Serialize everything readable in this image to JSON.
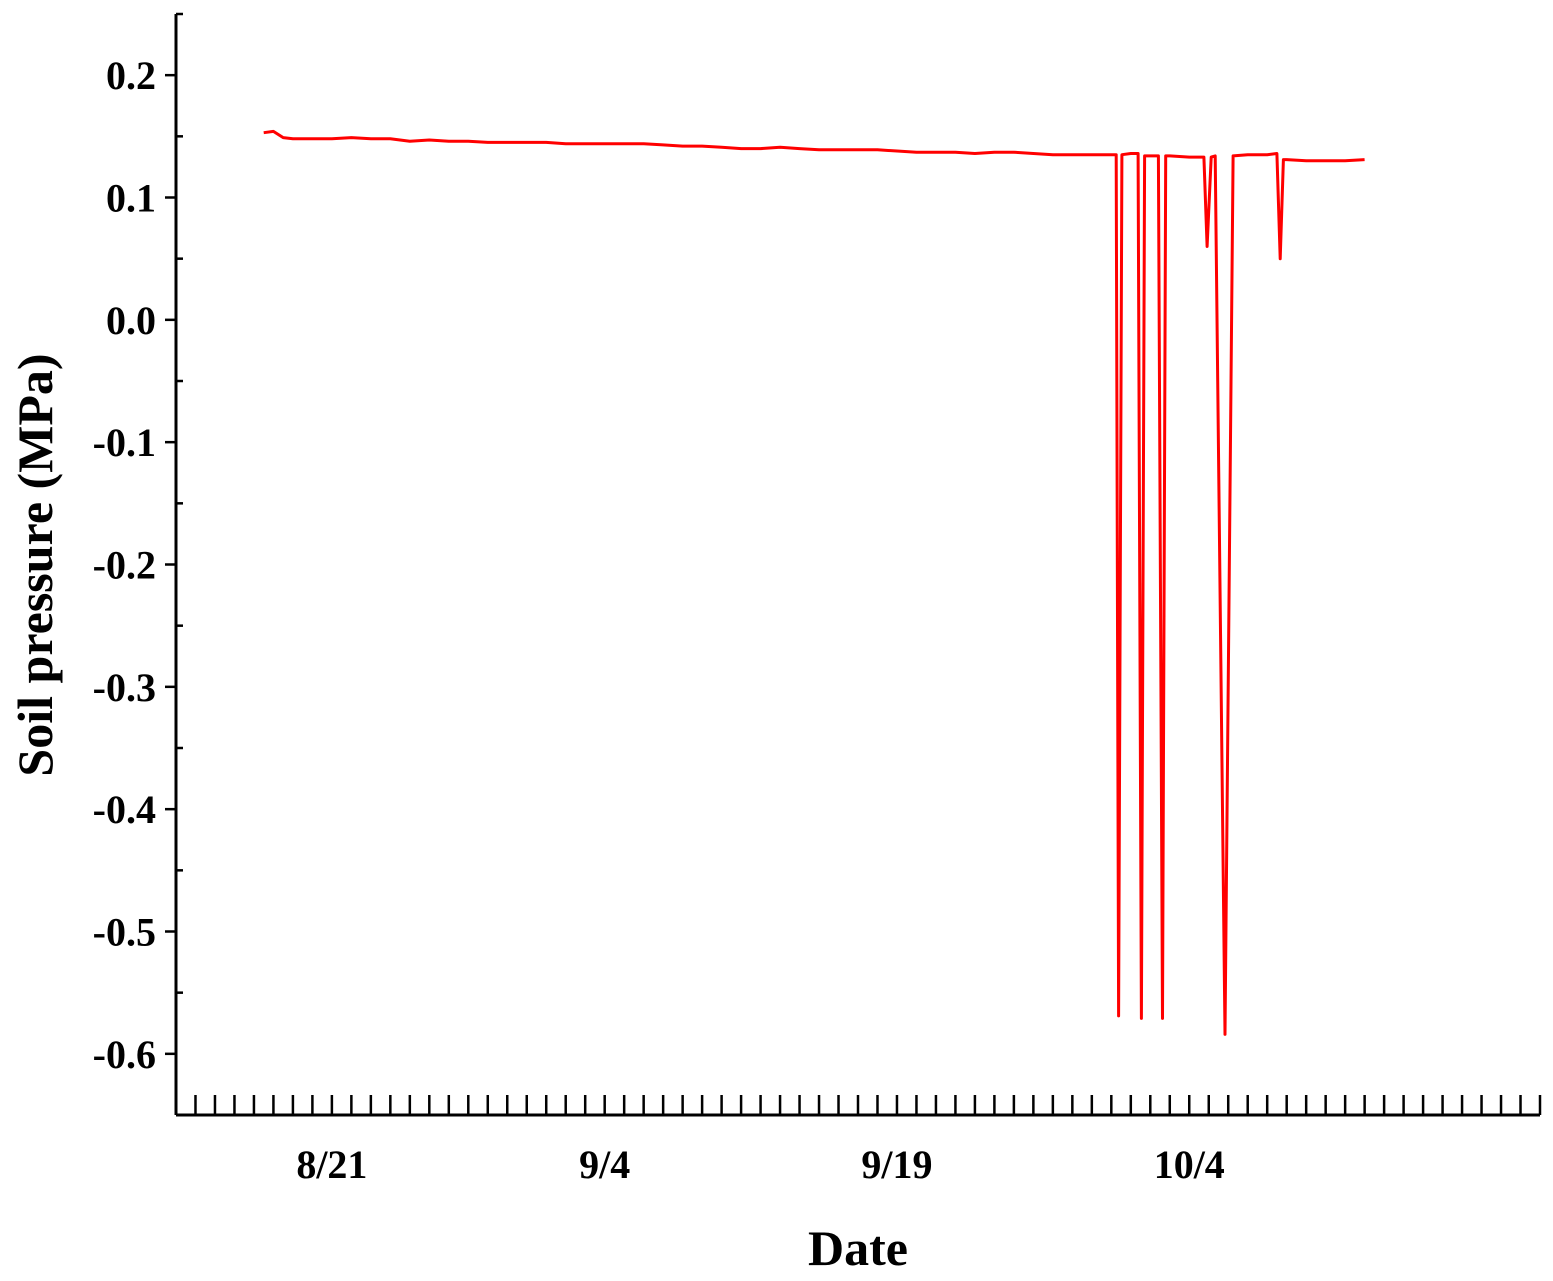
{
  "chart_data": {
    "type": "line",
    "title": "",
    "xlabel": "Date",
    "ylabel": "Soil pressure (MPa)",
    "x_tick_labels": [
      "8/21",
      "9/4",
      "9/19",
      "10/4"
    ],
    "x_tick_dates": [
      "2021-08-21",
      "2021-09-04",
      "2021-09-19",
      "2021-10-04"
    ],
    "y_ticks": [
      "0.2",
      "0.1",
      "0.0",
      "-0.1",
      "-0.2",
      "-0.3",
      "-0.4",
      "-0.5",
      "-0.6"
    ],
    "ylim": [
      -0.65,
      0.25
    ],
    "xlim": [
      "2021-08-13",
      "2021-10-22"
    ],
    "grid": false,
    "legend": "none",
    "series": [
      {
        "color": "#ff0000",
        "points": [
          [
            "2021-08-17T12:00",
            0.153
          ],
          [
            "2021-08-18",
            0.154
          ],
          [
            "2021-08-18T12:00",
            0.149
          ],
          [
            "2021-08-19",
            0.148
          ],
          [
            "2021-08-20",
            0.148
          ],
          [
            "2021-08-21",
            0.148
          ],
          [
            "2021-08-22",
            0.149
          ],
          [
            "2021-08-23",
            0.148
          ],
          [
            "2021-08-24",
            0.148
          ],
          [
            "2021-08-25",
            0.146
          ],
          [
            "2021-08-26",
            0.147
          ],
          [
            "2021-08-27",
            0.146
          ],
          [
            "2021-08-28",
            0.146
          ],
          [
            "2021-08-29",
            0.145
          ],
          [
            "2021-08-30",
            0.145
          ],
          [
            "2021-08-31",
            0.145
          ],
          [
            "2021-09-01",
            0.145
          ],
          [
            "2021-09-02",
            0.144
          ],
          [
            "2021-09-03",
            0.144
          ],
          [
            "2021-09-04",
            0.144
          ],
          [
            "2021-09-05",
            0.144
          ],
          [
            "2021-09-06",
            0.144
          ],
          [
            "2021-09-07",
            0.143
          ],
          [
            "2021-09-08",
            0.142
          ],
          [
            "2021-09-09",
            0.142
          ],
          [
            "2021-09-10",
            0.141
          ],
          [
            "2021-09-11",
            0.14
          ],
          [
            "2021-09-12",
            0.14
          ],
          [
            "2021-09-13",
            0.141
          ],
          [
            "2021-09-14",
            0.14
          ],
          [
            "2021-09-15",
            0.139
          ],
          [
            "2021-09-16",
            0.139
          ],
          [
            "2021-09-17",
            0.139
          ],
          [
            "2021-09-18",
            0.139
          ],
          [
            "2021-09-19",
            0.138
          ],
          [
            "2021-09-20",
            0.137
          ],
          [
            "2021-09-21",
            0.137
          ],
          [
            "2021-09-22",
            0.137
          ],
          [
            "2021-09-23",
            0.136
          ],
          [
            "2021-09-24",
            0.137
          ],
          [
            "2021-09-25",
            0.137
          ],
          [
            "2021-09-26",
            0.136
          ],
          [
            "2021-09-27",
            0.135
          ],
          [
            "2021-09-28",
            0.135
          ],
          [
            "2021-09-29",
            0.135
          ],
          [
            "2021-09-30T06:00",
            0.135
          ],
          [
            "2021-09-30T09:00",
            -0.569
          ],
          [
            "2021-09-30T13:00",
            0.135
          ],
          [
            "2021-10-01",
            0.136
          ],
          [
            "2021-10-01T09:00",
            0.136
          ],
          [
            "2021-10-01T13:00",
            -0.571
          ],
          [
            "2021-10-01T17:00",
            0.134
          ],
          [
            "2021-10-02T10:00",
            0.134
          ],
          [
            "2021-10-02T15:00",
            -0.571
          ],
          [
            "2021-10-02T19:00",
            0.134
          ],
          [
            "2021-10-03",
            0.134
          ],
          [
            "2021-10-04",
            0.133
          ],
          [
            "2021-10-04T18:00",
            0.133
          ],
          [
            "2021-10-04T22:00",
            0.06
          ],
          [
            "2021-10-05T03:00",
            0.133
          ],
          [
            "2021-10-05T08:00",
            0.134
          ],
          [
            "2021-10-05T20:00",
            -0.584
          ],
          [
            "2021-10-06T06:00",
            0.134
          ],
          [
            "2021-10-07",
            0.135
          ],
          [
            "2021-10-08",
            0.135
          ],
          [
            "2021-10-08T12:00",
            0.136
          ],
          [
            "2021-10-08T16:00",
            0.05
          ],
          [
            "2021-10-08T20:00",
            0.131
          ],
          [
            "2021-10-09",
            0.131
          ],
          [
            "2021-10-10",
            0.13
          ],
          [
            "2021-10-11",
            0.13
          ],
          [
            "2021-10-12",
            0.13
          ],
          [
            "2021-10-13",
            0.131
          ]
        ]
      }
    ]
  }
}
